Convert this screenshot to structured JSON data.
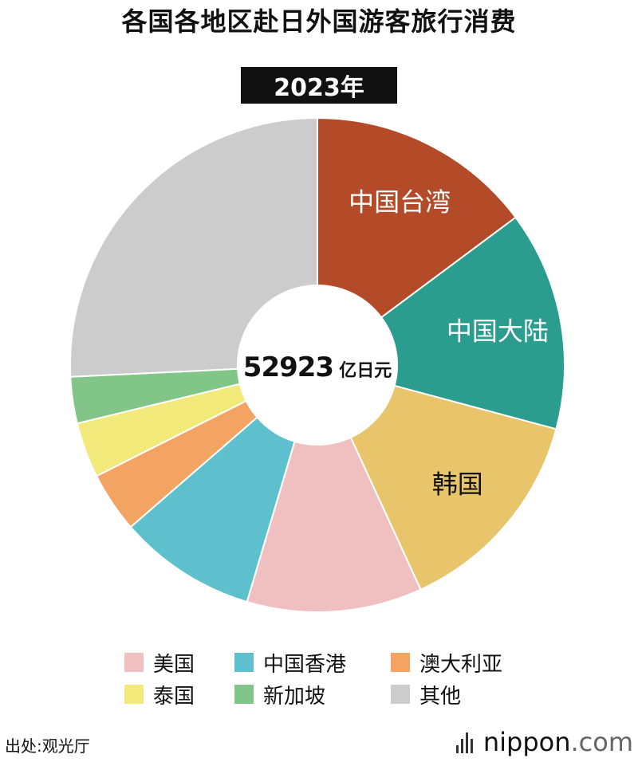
{
  "header": {
    "title": "各国各地区赴日外国游客旅行消费",
    "year": "2023年"
  },
  "chart_data": {
    "type": "pie",
    "style": "donut",
    "center_value": "52923",
    "center_unit": "亿日元",
    "categories": [
      "中国台湾",
      "中国大陆",
      "韩国",
      "美国",
      "中国香港",
      "澳大利亚",
      "泰国",
      "新加坡",
      "其他"
    ],
    "values": [
      7835,
      7604,
      7392,
      6065,
      4777,
      2095,
      1916,
      1607,
      13632
    ],
    "colors": [
      "#B34A28",
      "#2A9D8F",
      "#E8C46A",
      "#F0C0C0",
      "#5FC0CD",
      "#F3A362",
      "#F2EA7A",
      "#82C589",
      "#CCCCCC"
    ],
    "slice_label_colors": [
      "#ffffff",
      "#ffffff",
      "#111111",
      "",
      "",
      "",
      "",
      "",
      ""
    ],
    "labeled_slices": [
      true,
      true,
      true,
      false,
      false,
      false,
      false,
      false,
      false
    ],
    "legend_categories": [
      "美国",
      "中国香港",
      "澳大利亚",
      "泰国",
      "新加坡",
      "其他"
    ],
    "legend_colors": [
      "#F0C0C0",
      "#5FC0CD",
      "#F3A362",
      "#F2EA7A",
      "#82C589",
      "#CCCCCC"
    ]
  },
  "footer": {
    "source": "出处:观光厅",
    "brand_main": "nippon",
    "brand_suffix": ".com"
  }
}
